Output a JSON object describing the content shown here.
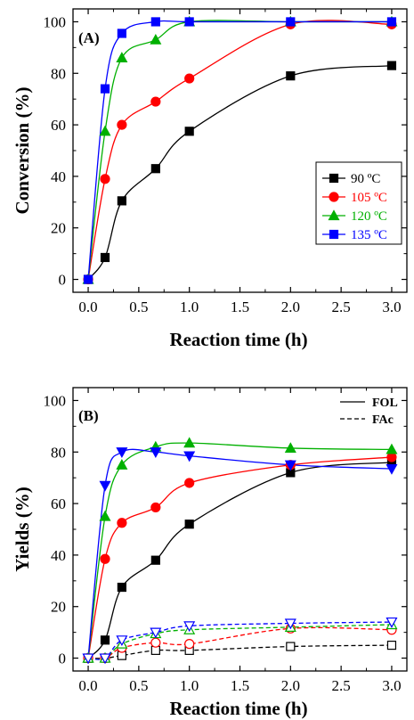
{
  "chart_data": [
    {
      "type": "scatter",
      "panel_label": "(A)",
      "xlabel": "Reaction time (h)",
      "ylabel": "Conversion (%)",
      "xlim": [
        -0.15,
        3.15
      ],
      "ylim": [
        -5,
        105
      ],
      "xticks": [
        "0.0",
        "0.5",
        "1.0",
        "1.5",
        "2.0",
        "2.5",
        "3.0"
      ],
      "yticks": [
        "0",
        "20",
        "40",
        "60",
        "80",
        "100"
      ],
      "grid": false,
      "legend_position": "right",
      "series": [
        {
          "name": "90 ºC",
          "color": "#000000",
          "marker": "square",
          "x": [
            0,
            0.167,
            0.333,
            0.667,
            1.0,
            2.0,
            3.0
          ],
          "y": [
            0,
            8.5,
            30.5,
            43,
            57.5,
            79,
            83
          ]
        },
        {
          "name": "105 ºC",
          "color": "#ff0000",
          "marker": "circle",
          "x": [
            0,
            0.167,
            0.333,
            0.667,
            1.0,
            2.0,
            3.0
          ],
          "y": [
            0,
            39,
            60,
            69,
            78,
            99,
            99
          ]
        },
        {
          "name": "120 ºC",
          "color": "#00b000",
          "marker": "triangle-up",
          "x": [
            0,
            0.167,
            0.333,
            0.667,
            1.0,
            2.0,
            3.0
          ],
          "y": [
            0,
            57.5,
            86,
            93,
            100,
            100,
            100
          ]
        },
        {
          "name": "135 ºC",
          "color": "#0000ff",
          "marker": "square",
          "x": [
            0,
            0.167,
            0.333,
            0.667,
            1.0,
            2.0,
            3.0
          ],
          "y": [
            0,
            74,
            95.5,
            100,
            100,
            100,
            100
          ]
        }
      ]
    },
    {
      "type": "scatter",
      "panel_label": "(B)",
      "xlabel": "Reaction time (h)",
      "ylabel": "Yields (%)",
      "xlim": [
        -0.15,
        3.15
      ],
      "ylim": [
        -5,
        105
      ],
      "xticks": [
        "0.0",
        "0.5",
        "1.0",
        "1.5",
        "2.0",
        "2.5",
        "3.0"
      ],
      "yticks": [
        "0",
        "20",
        "40",
        "60",
        "80",
        "100"
      ],
      "grid": false,
      "legend_position": "top-right",
      "legend": [
        {
          "label": "FOL",
          "style": "solid"
        },
        {
          "label": "FAc",
          "style": "dashed"
        }
      ],
      "series": [
        {
          "name": "90 ºC FOL",
          "color": "#000000",
          "marker": "square",
          "filled": true,
          "line": "solid",
          "x": [
            0,
            0.167,
            0.333,
            0.667,
            1.0,
            2.0,
            3.0
          ],
          "y": [
            0,
            7,
            27.5,
            38,
            52,
            72,
            76
          ]
        },
        {
          "name": "105 ºC FOL",
          "color": "#ff0000",
          "marker": "circle",
          "filled": true,
          "line": "solid",
          "x": [
            0,
            0.167,
            0.333,
            0.667,
            1.0,
            2.0,
            3.0
          ],
          "y": [
            0,
            38.5,
            52.5,
            58.5,
            68,
            75,
            78
          ]
        },
        {
          "name": "120 ºC FOL",
          "color": "#00b000",
          "marker": "triangle-up",
          "filled": true,
          "line": "solid",
          "x": [
            0,
            0.167,
            0.333,
            0.667,
            1.0,
            2.0,
            3.0
          ],
          "y": [
            0,
            55,
            75,
            82,
            83.5,
            81.5,
            81
          ]
        },
        {
          "name": "135 ºC FOL",
          "color": "#0000ff",
          "marker": "triangle-down",
          "filled": true,
          "line": "solid",
          "x": [
            0,
            0.167,
            0.333,
            0.667,
            1.0,
            2.0,
            3.0
          ],
          "y": [
            0,
            67,
            80,
            80,
            78.5,
            75,
            73.5
          ]
        },
        {
          "name": "90 ºC FAc",
          "color": "#000000",
          "marker": "square",
          "filled": false,
          "line": "dashed",
          "x": [
            0,
            0.167,
            0.333,
            0.667,
            1.0,
            2.0,
            3.0
          ],
          "y": [
            0,
            0,
            1,
            3,
            3,
            4.5,
            5
          ]
        },
        {
          "name": "105 ºC FAc",
          "color": "#ff0000",
          "marker": "circle",
          "filled": false,
          "line": "dashed",
          "x": [
            0,
            0.167,
            0.333,
            0.667,
            1.0,
            2.0,
            3.0
          ],
          "y": [
            0,
            0,
            4,
            6,
            5.5,
            11.5,
            11
          ]
        },
        {
          "name": "120 ºC FAc",
          "color": "#00b000",
          "marker": "triangle-up",
          "filled": false,
          "line": "dashed",
          "x": [
            0,
            0.167,
            0.333,
            0.667,
            1.0,
            2.0,
            3.0
          ],
          "y": [
            0,
            0,
            5.5,
            9.5,
            11,
            12,
            13
          ]
        },
        {
          "name": "135 ºC FAc",
          "color": "#0000ff",
          "marker": "triangle-down",
          "filled": false,
          "line": "dashed",
          "x": [
            0,
            0.167,
            0.333,
            0.667,
            1.0,
            2.0,
            3.0
          ],
          "y": [
            0,
            0,
            7,
            10,
            12.5,
            13.5,
            14
          ]
        }
      ]
    }
  ]
}
